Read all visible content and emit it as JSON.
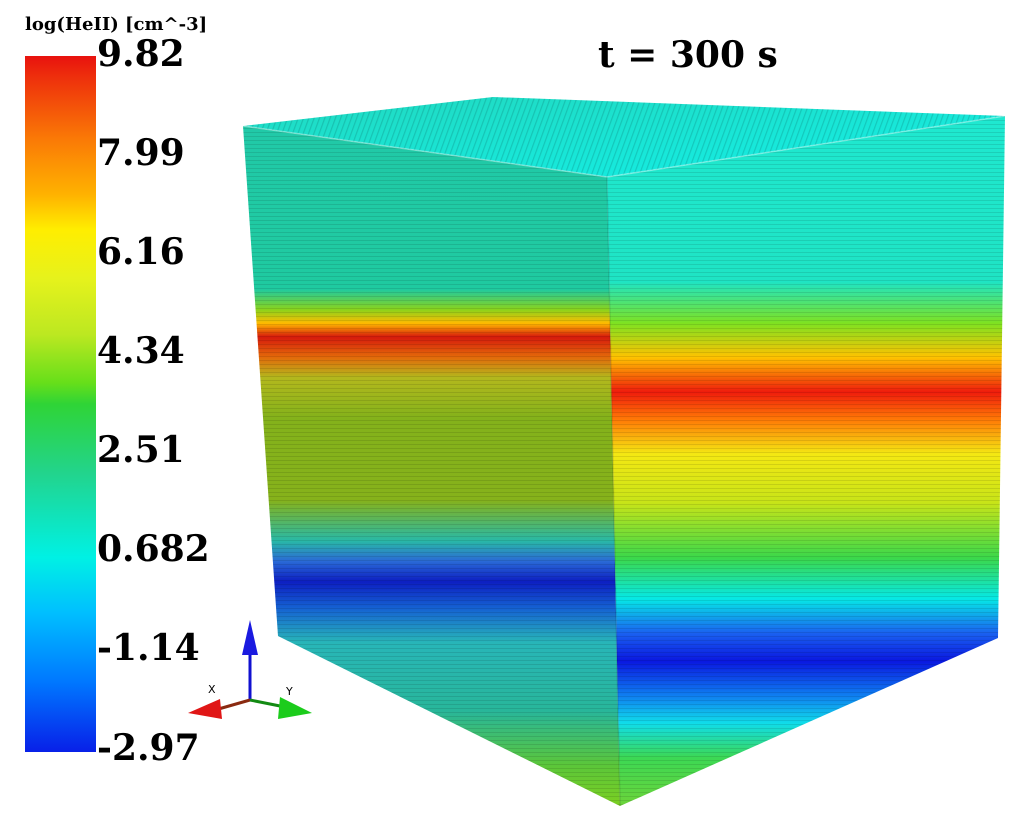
{
  "colorbar": {
    "title": "log(HeII) [cm^-3]",
    "ticks": [
      "9.82",
      "7.99",
      "6.16",
      "4.34",
      "2.51",
      "0.682",
      "-1.14",
      "-2.97"
    ]
  },
  "time_label": "t = 300 s",
  "axes": {
    "x_label": "X",
    "y_label": "Y"
  },
  "colors": {
    "red": "#e8120e",
    "orange": "#fa7a06",
    "yellow": "#ffee00",
    "green": "#2fd436",
    "cyan": "#00f1e4",
    "blue": "#0820e8",
    "teal": "#1ccfb4"
  },
  "icons": [
    "axis-triad-icon"
  ]
}
